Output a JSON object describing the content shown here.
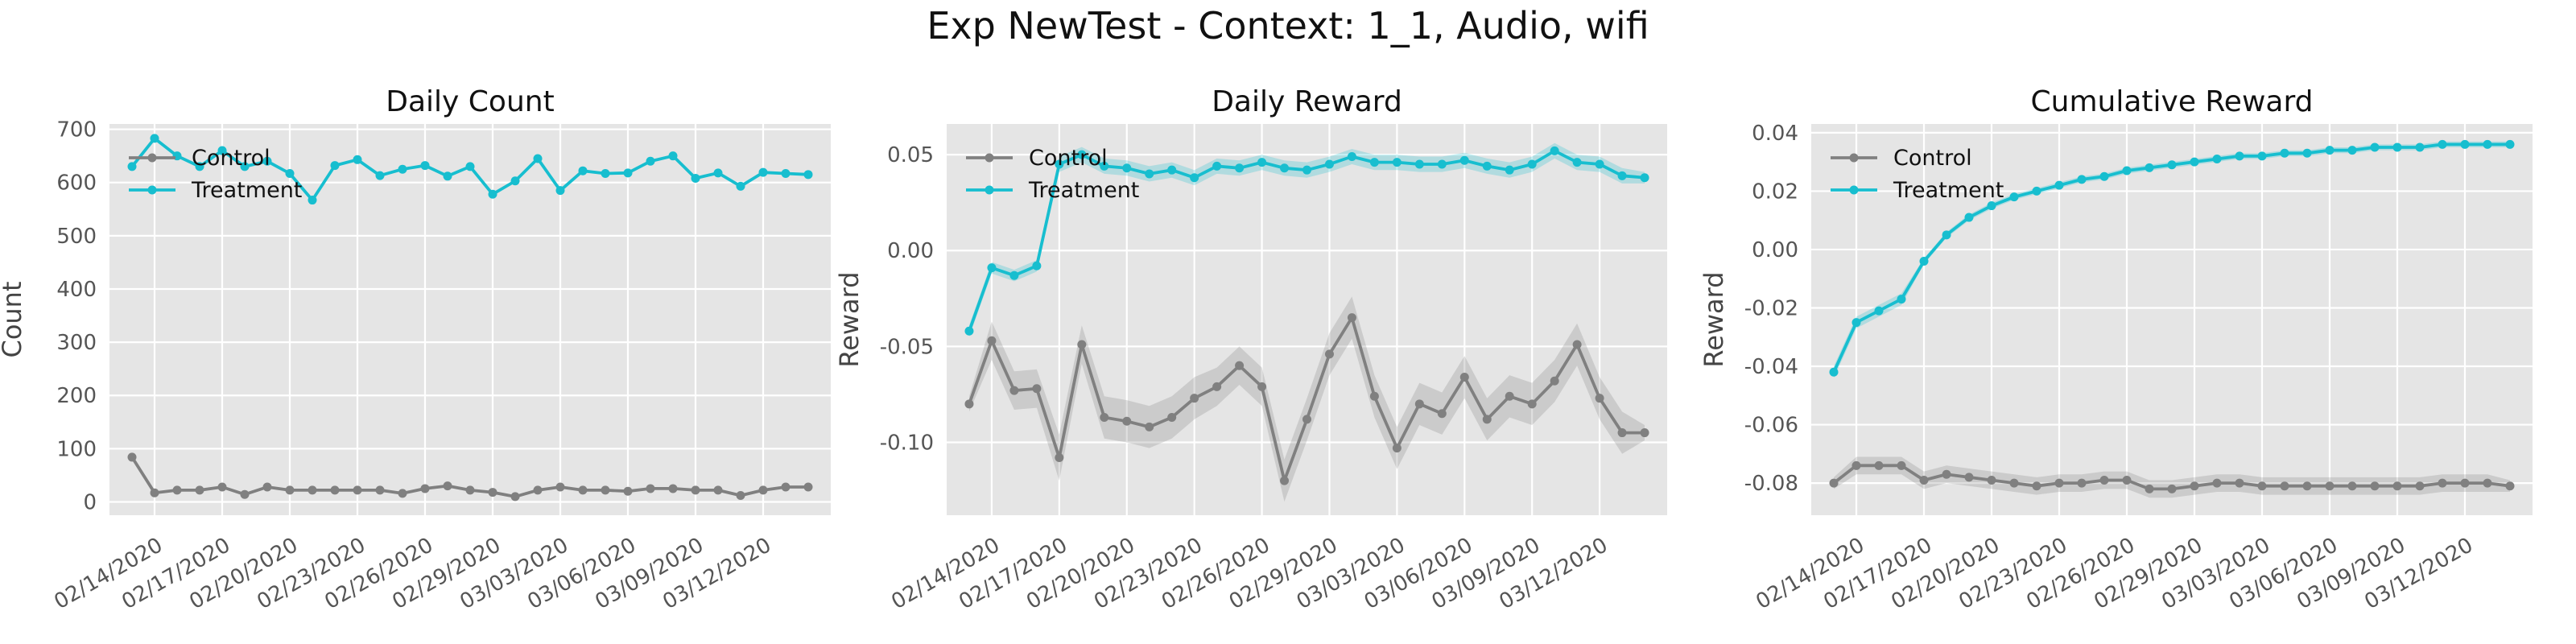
{
  "figure_title": "Exp NewTest - Context: 1_1, Audio, wifi",
  "colors": {
    "control": "#808080",
    "treatment": "#17becf",
    "panel_bg": "#e5e5e5",
    "grid": "#ffffff"
  },
  "x_ticks": [
    "02/14/2020",
    "02/17/2020",
    "02/20/2020",
    "02/23/2020",
    "02/26/2020",
    "02/29/2020",
    "03/03/2020",
    "03/06/2020",
    "03/09/2020",
    "03/12/2020"
  ],
  "chart_data": [
    {
      "type": "line",
      "title": "Daily Count",
      "ylabel": "Count",
      "x": [
        "02/13/2020",
        "02/14/2020",
        "02/15/2020",
        "02/16/2020",
        "02/17/2020",
        "02/18/2020",
        "02/19/2020",
        "02/20/2020",
        "02/21/2020",
        "02/22/2020",
        "02/23/2020",
        "02/24/2020",
        "02/25/2020",
        "02/26/2020",
        "02/27/2020",
        "02/28/2020",
        "02/29/2020",
        "03/01/2020",
        "03/02/2020",
        "03/03/2020",
        "03/04/2020",
        "03/05/2020",
        "03/06/2020",
        "03/07/2020",
        "03/08/2020",
        "03/09/2020",
        "03/10/2020",
        "03/11/2020",
        "03/12/2020",
        "03/13/2020",
        "03/14/2020"
      ],
      "ylim": [
        -25,
        710
      ],
      "yticks": [
        0,
        100,
        200,
        300,
        400,
        500,
        600,
        700
      ],
      "ytick_decimals": 0,
      "legend": "upper-left",
      "series": [
        {
          "name": "Control",
          "values": [
            84,
            17,
            22,
            22,
            28,
            14,
            28,
            22,
            22,
            22,
            22,
            22,
            16,
            25,
            30,
            22,
            18,
            10,
            22,
            28,
            22,
            22,
            20,
            25,
            25,
            22,
            22,
            12,
            22,
            28,
            28
          ],
          "band": [
            0,
            0,
            0,
            0,
            0,
            0,
            0,
            0,
            0,
            0,
            0,
            0,
            0,
            0,
            0,
            0,
            0,
            0,
            0,
            0,
            0,
            0,
            0,
            0,
            0,
            0,
            0,
            0,
            0,
            0,
            0
          ]
        },
        {
          "name": "Treatment",
          "values": [
            630,
            683,
            650,
            630,
            660,
            630,
            640,
            617,
            567,
            632,
            643,
            613,
            625,
            632,
            612,
            630,
            578,
            603,
            645,
            585,
            622,
            617,
            618,
            640,
            650,
            608,
            618,
            593,
            619,
            617,
            615
          ],
          "band": [
            0,
            0,
            0,
            0,
            0,
            0,
            0,
            0,
            0,
            0,
            0,
            0,
            0,
            0,
            0,
            0,
            0,
            0,
            0,
            0,
            0,
            0,
            0,
            0,
            0,
            0,
            0,
            0,
            0,
            0,
            0
          ]
        }
      ]
    },
    {
      "type": "line",
      "title": "Daily Reward",
      "ylabel": "Reward",
      "x": [
        "02/13/2020",
        "02/14/2020",
        "02/15/2020",
        "02/16/2020",
        "02/17/2020",
        "02/18/2020",
        "02/19/2020",
        "02/20/2020",
        "02/21/2020",
        "02/22/2020",
        "02/23/2020",
        "02/24/2020",
        "02/25/2020",
        "02/26/2020",
        "02/27/2020",
        "02/28/2020",
        "02/29/2020",
        "03/01/2020",
        "03/02/2020",
        "03/03/2020",
        "03/04/2020",
        "03/05/2020",
        "03/06/2020",
        "03/07/2020",
        "03/08/2020",
        "03/09/2020",
        "03/10/2020",
        "03/11/2020",
        "03/12/2020",
        "03/13/2020",
        "03/14/2020"
      ],
      "ylim": [
        -0.138,
        0.066
      ],
      "yticks": [
        -0.1,
        -0.05,
        0.0,
        0.05
      ],
      "ytick_decimals": 2,
      "legend": "upper-left",
      "series": [
        {
          "name": "Control",
          "values": [
            -0.08,
            -0.047,
            -0.073,
            -0.072,
            -0.108,
            -0.049,
            -0.087,
            -0.089,
            -0.092,
            -0.087,
            -0.077,
            -0.071,
            -0.06,
            -0.071,
            -0.12,
            -0.088,
            -0.054,
            -0.035,
            -0.076,
            -0.103,
            -0.08,
            -0.085,
            -0.066,
            -0.088,
            -0.076,
            -0.08,
            -0.068,
            -0.049,
            -0.077,
            -0.095,
            -0.095
          ],
          "band": [
            0.004,
            0.01,
            0.01,
            0.01,
            0.012,
            0.01,
            0.011,
            0.011,
            0.011,
            0.011,
            0.011,
            0.01,
            0.01,
            0.01,
            0.011,
            0.011,
            0.011,
            0.011,
            0.011,
            0.011,
            0.011,
            0.011,
            0.011,
            0.011,
            0.011,
            0.011,
            0.011,
            0.011,
            0.011,
            0.011,
            0.004
          ]
        },
        {
          "name": "Treatment",
          "values": [
            -0.042,
            -0.009,
            -0.013,
            -0.008,
            0.045,
            0.05,
            0.044,
            0.043,
            0.04,
            0.042,
            0.038,
            0.044,
            0.043,
            0.046,
            0.043,
            0.042,
            0.045,
            0.049,
            0.046,
            0.046,
            0.045,
            0.045,
            0.047,
            0.044,
            0.042,
            0.045,
            0.052,
            0.046,
            0.045,
            0.039,
            0.038
          ],
          "band": [
            0.003,
            0.003,
            0.003,
            0.003,
            0.004,
            0.004,
            0.004,
            0.004,
            0.004,
            0.004,
            0.004,
            0.004,
            0.004,
            0.004,
            0.004,
            0.004,
            0.004,
            0.004,
            0.004,
            0.004,
            0.004,
            0.004,
            0.004,
            0.004,
            0.004,
            0.004,
            0.004,
            0.004,
            0.004,
            0.004,
            0.003
          ]
        }
      ]
    },
    {
      "type": "line",
      "title": "Cumulative Reward",
      "ylabel": "Reward",
      "x": [
        "02/13/2020",
        "02/14/2020",
        "02/15/2020",
        "02/16/2020",
        "02/17/2020",
        "02/18/2020",
        "02/19/2020",
        "02/20/2020",
        "02/21/2020",
        "02/22/2020",
        "02/23/2020",
        "02/24/2020",
        "02/25/2020",
        "02/26/2020",
        "02/27/2020",
        "02/28/2020",
        "02/29/2020",
        "03/01/2020",
        "03/02/2020",
        "03/03/2020",
        "03/04/2020",
        "03/05/2020",
        "03/06/2020",
        "03/07/2020",
        "03/08/2020",
        "03/09/2020",
        "03/10/2020",
        "03/11/2020",
        "03/12/2020",
        "03/13/2020",
        "03/14/2020"
      ],
      "ylim": [
        -0.091,
        0.043
      ],
      "yticks": [
        -0.08,
        -0.06,
        -0.04,
        -0.02,
        0.0,
        0.02,
        0.04
      ],
      "ytick_decimals": 2,
      "legend": "upper-left",
      "series": [
        {
          "name": "Control",
          "values": [
            -0.08,
            -0.074,
            -0.074,
            -0.074,
            -0.079,
            -0.077,
            -0.078,
            -0.079,
            -0.08,
            -0.081,
            -0.08,
            -0.08,
            -0.079,
            -0.079,
            -0.082,
            -0.082,
            -0.081,
            -0.08,
            -0.08,
            -0.081,
            -0.081,
            -0.081,
            -0.081,
            -0.081,
            -0.081,
            -0.081,
            -0.081,
            -0.08,
            -0.08,
            -0.08,
            -0.081
          ],
          "band": [
            0.002,
            0.003,
            0.003,
            0.003,
            0.003,
            0.003,
            0.003,
            0.003,
            0.003,
            0.003,
            0.003,
            0.003,
            0.003,
            0.003,
            0.003,
            0.003,
            0.003,
            0.003,
            0.003,
            0.003,
            0.003,
            0.003,
            0.003,
            0.003,
            0.003,
            0.003,
            0.003,
            0.003,
            0.003,
            0.003,
            0.002
          ]
        },
        {
          "name": "Treatment",
          "values": [
            -0.042,
            -0.025,
            -0.021,
            -0.017,
            -0.004,
            0.005,
            0.011,
            0.015,
            0.018,
            0.02,
            0.022,
            0.024,
            0.025,
            0.027,
            0.028,
            0.029,
            0.03,
            0.031,
            0.032,
            0.032,
            0.033,
            0.033,
            0.034,
            0.034,
            0.035,
            0.035,
            0.035,
            0.036,
            0.036,
            0.036,
            0.036
          ],
          "band": [
            0.002,
            0.002,
            0.002,
            0.002,
            0.001,
            0.001,
            0.001,
            0.001,
            0.001,
            0.001,
            0.001,
            0.001,
            0.001,
            0.001,
            0.001,
            0.001,
            0.001,
            0.001,
            0.001,
            0.001,
            0.001,
            0.001,
            0.001,
            0.001,
            0.001,
            0.001,
            0.001,
            0.001,
            0.001,
            0.001,
            0.001
          ]
        }
      ]
    }
  ]
}
